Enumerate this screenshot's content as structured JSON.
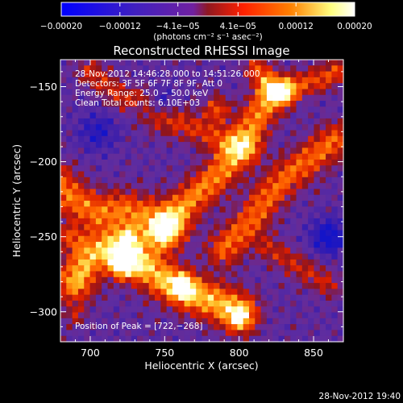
{
  "chart_data": {
    "type": "heatmap",
    "title": "Reconstructed RHESSI Image",
    "xlabel": "Heliocentric X (arcsec)",
    "ylabel": "Heliocentric Y (arcsec)",
    "xlim": [
      680,
      870
    ],
    "ylim": [
      -320,
      -132
    ],
    "x_ticks": [
      700,
      750,
      800,
      850
    ],
    "x_tick_labels": [
      "700",
      "750",
      "800",
      "850"
    ],
    "y_ticks": [
      -150,
      -200,
      -250,
      -300
    ],
    "y_tick_labels": [
      "−150",
      "−200",
      "−250",
      "−300"
    ],
    "colorbar": {
      "range": [
        -0.0002,
        0.0002
      ],
      "ticks": [
        -0.0002,
        -0.00012,
        -4.1e-05,
        4.1e-05,
        0.00012,
        0.0002
      ],
      "tick_labels": [
        "−0.00020",
        "−0.00012",
        "−4.1e−05",
        "4.1e−05",
        "0.00012",
        "0.00020"
      ],
      "units": "(photons cm⁻² s⁻¹ asec⁻²)",
      "colors": [
        "#0000ff",
        "#4020c0",
        "#7020a0",
        "#901820",
        "#ff2000",
        "#ff8000",
        "#ffff80",
        "#ffffff"
      ]
    },
    "annotations": [
      "28-Nov-2012 14:46:28.000 to 14:51:26.000",
      "Detectors: 3F 5F 6F 7F 8F 9F, Att 0",
      "Energy Range: 25.0 − 50.0 keV",
      "Clean     Total counts: 6.10E+03"
    ],
    "peak_label": "Position of Peak = [722,−268]",
    "peak": [
      722,
      -268
    ],
    "ridges": [
      {
        "points": [
          [
            690,
            -280
          ],
          [
            700,
            -262
          ],
          [
            712,
            -258
          ],
          [
            728,
            -262
          ],
          [
            748,
            -278
          ],
          [
            768,
            -288
          ],
          [
            785,
            -294
          ],
          [
            800,
            -300
          ]
        ],
        "width": 9,
        "strength": 0.8
      },
      {
        "points": [
          [
            678,
            -215
          ],
          [
            690,
            -226
          ],
          [
            705,
            -234
          ],
          [
            722,
            -232
          ],
          [
            738,
            -236
          ],
          [
            752,
            -244
          ]
        ],
        "width": 9,
        "strength": 0.62
      },
      {
        "points": [
          [
            748,
            -248
          ],
          [
            760,
            -232
          ],
          [
            776,
            -218
          ],
          [
            790,
            -205
          ],
          [
            802,
            -188
          ],
          [
            812,
            -170
          ],
          [
            824,
            -154
          ]
        ],
        "width": 8,
        "strength": 0.66
      },
      {
        "points": [
          [
            790,
            -258
          ],
          [
            806,
            -242
          ],
          [
            818,
            -225
          ],
          [
            832,
            -210
          ],
          [
            848,
            -198
          ],
          [
            864,
            -186
          ]
        ],
        "width": 8,
        "strength": 0.58
      },
      {
        "points": [
          [
            745,
            -170
          ],
          [
            765,
            -176
          ],
          [
            785,
            -184
          ],
          [
            805,
            -192
          ]
        ],
        "width": 7,
        "strength": 0.42
      },
      {
        "points": [
          [
            812,
            -138
          ],
          [
            822,
            -152
          ],
          [
            836,
            -150
          ],
          [
            852,
            -146
          ],
          [
            866,
            -140
          ]
        ],
        "width": 6,
        "strength": 0.48
      },
      {
        "points": [
          [
            700,
            -140
          ],
          [
            712,
            -150
          ],
          [
            722,
            -158
          ],
          [
            738,
            -158
          ]
        ],
        "width": 6,
        "strength": 0.38
      },
      {
        "points": [
          [
            820,
            -258
          ],
          [
            840,
            -270
          ],
          [
            860,
            -282
          ]
        ],
        "width": 6,
        "strength": 0.35
      }
    ],
    "blobs": [
      {
        "center": [
          722,
          -268
        ],
        "radius": 7,
        "strength": 1.0
      },
      {
        "center": [
          725,
          -250
        ],
        "radius": 6,
        "strength": 0.55
      },
      {
        "center": [
          762,
          -283
        ],
        "radius": 6,
        "strength": 0.6
      },
      {
        "center": [
          785,
          -165
        ],
        "radius": 6,
        "strength": 0.5
      },
      {
        "center": [
          830,
          -155
        ],
        "radius": 5,
        "strength": 0.5
      },
      {
        "center": [
          686,
          -250
        ],
        "radius": 6,
        "strength": 0.4
      },
      {
        "center": [
          800,
          -305
        ],
        "radius": 6,
        "strength": 0.45
      },
      {
        "center": [
          690,
          -302
        ],
        "radius": 5,
        "strength": 0.3
      }
    ],
    "negative_regions": [
      {
        "center": [
          860,
          -250
        ],
        "radius": 8,
        "strength": 0.55
      },
      {
        "center": [
          745,
          -160
        ],
        "radius": 7,
        "strength": 0.4
      },
      {
        "center": [
          705,
          -180
        ],
        "radius": 9,
        "strength": 0.35
      }
    ]
  },
  "footer": {
    "timestamp": "28-Nov-2012 19:40"
  }
}
